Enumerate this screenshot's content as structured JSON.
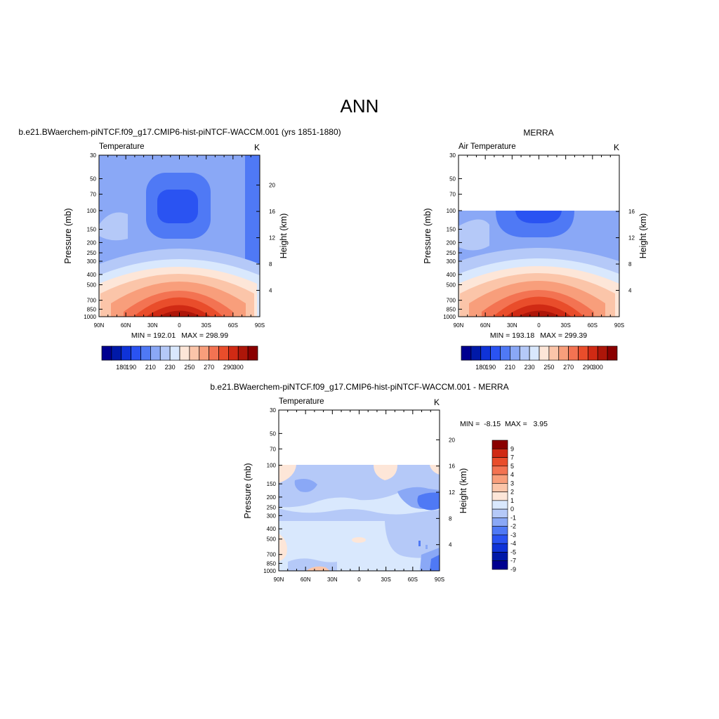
{
  "page_title": "ANN",
  "colors": {
    "temp_scale": [
      "#000090",
      "#0019a8",
      "#0f33d8",
      "#2a53f2",
      "#4f79f5",
      "#8aa8f6",
      "#b5c9f8",
      "#d9e8fd",
      "#fde6d8",
      "#fbc5a9",
      "#f89e7b",
      "#f37352",
      "#e94d2b",
      "#d02a14",
      "#ad1609",
      "#8a0000"
    ],
    "diff_scale": [
      "#000090",
      "#0019a8",
      "#0f33d8",
      "#2a53f2",
      "#4f79f5",
      "#8aa8f6",
      "#b5c9f8",
      "#d9e8fd",
      "#fde6d8",
      "#fbc5a9",
      "#f89e7b",
      "#f37352",
      "#e94d2b",
      "#d02a14",
      "#8a0000"
    ]
  },
  "chart_data": [
    {
      "type": "heatmap",
      "panel_title": "b.e21.BWaerchem-piNTCF.f09_g17.CMIP6-hist-piNTCF-WACCM.001 (yrs 1851-1880)",
      "left_string": "Temperature",
      "units": "K",
      "ylabel": "Pressure (mb)",
      "ylabel_right": "Height (km)",
      "xticks": [
        "90N",
        "60N",
        "30N",
        "0",
        "30S",
        "60S",
        "90S"
      ],
      "yticks": [
        "30",
        "50",
        "70",
        "100",
        "150",
        "200",
        "250",
        "300",
        "400",
        "500",
        "700",
        "850",
        "1000"
      ],
      "height_ticks": [
        "20",
        "16",
        "12",
        "8",
        "4"
      ],
      "min_label": "MIN = 192.01",
      "max_label": "MAX = 298.99",
      "min": 192.01,
      "max": 298.99,
      "colorbar_labels": [
        "180",
        "190",
        "210",
        "230",
        "250",
        "270",
        "290",
        "300"
      ],
      "top_pressure": 30
    },
    {
      "type": "heatmap",
      "panel_title": "MERRA",
      "left_string": "Air Temperature",
      "units": "K",
      "ylabel": "Pressure (mb)",
      "ylabel_right": "Height (km)",
      "xticks": [
        "90N",
        "60N",
        "30N",
        "0",
        "30S",
        "60S",
        "90S"
      ],
      "yticks": [
        "30",
        "50",
        "70",
        "100",
        "150",
        "200",
        "250",
        "300",
        "400",
        "500",
        "700",
        "850",
        "1000"
      ],
      "height_ticks": [
        "16",
        "12",
        "8",
        "4"
      ],
      "min_label": "MIN = 193.18",
      "max_label": "MAX = 299.39",
      "min": 193.18,
      "max": 299.39,
      "colorbar_labels": [
        "180",
        "190",
        "210",
        "230",
        "250",
        "270",
        "290",
        "300"
      ],
      "top_pressure": 100
    },
    {
      "type": "heatmap",
      "panel_title": "b.e21.BWaerchem-piNTCF.f09_g17.CMIP6-hist-piNTCF-WACCM.001 - MERRA",
      "left_string": "Temperature",
      "units": "K",
      "ylabel": "Pressure (mb)",
      "ylabel_right": "Height (km)",
      "xticks": [
        "90N",
        "60N",
        "30N",
        "0",
        "30S",
        "60S",
        "90S"
      ],
      "yticks": [
        "30",
        "50",
        "70",
        "100",
        "150",
        "200",
        "250",
        "300",
        "400",
        "500",
        "700",
        "850",
        "1000"
      ],
      "height_ticks": [
        "20",
        "16",
        "12",
        "8",
        "4"
      ],
      "min_label": "MIN =  -8.15",
      "max_label": "MAX =   3.95",
      "min": -8.15,
      "max": 3.95,
      "colorbar_labels": [
        "9",
        "7",
        "5",
        "4",
        "3",
        "2",
        "1",
        "0",
        "-1",
        "-2",
        "-3",
        "-4",
        "-5",
        "-7",
        "-9"
      ],
      "top_pressure": 100
    }
  ]
}
